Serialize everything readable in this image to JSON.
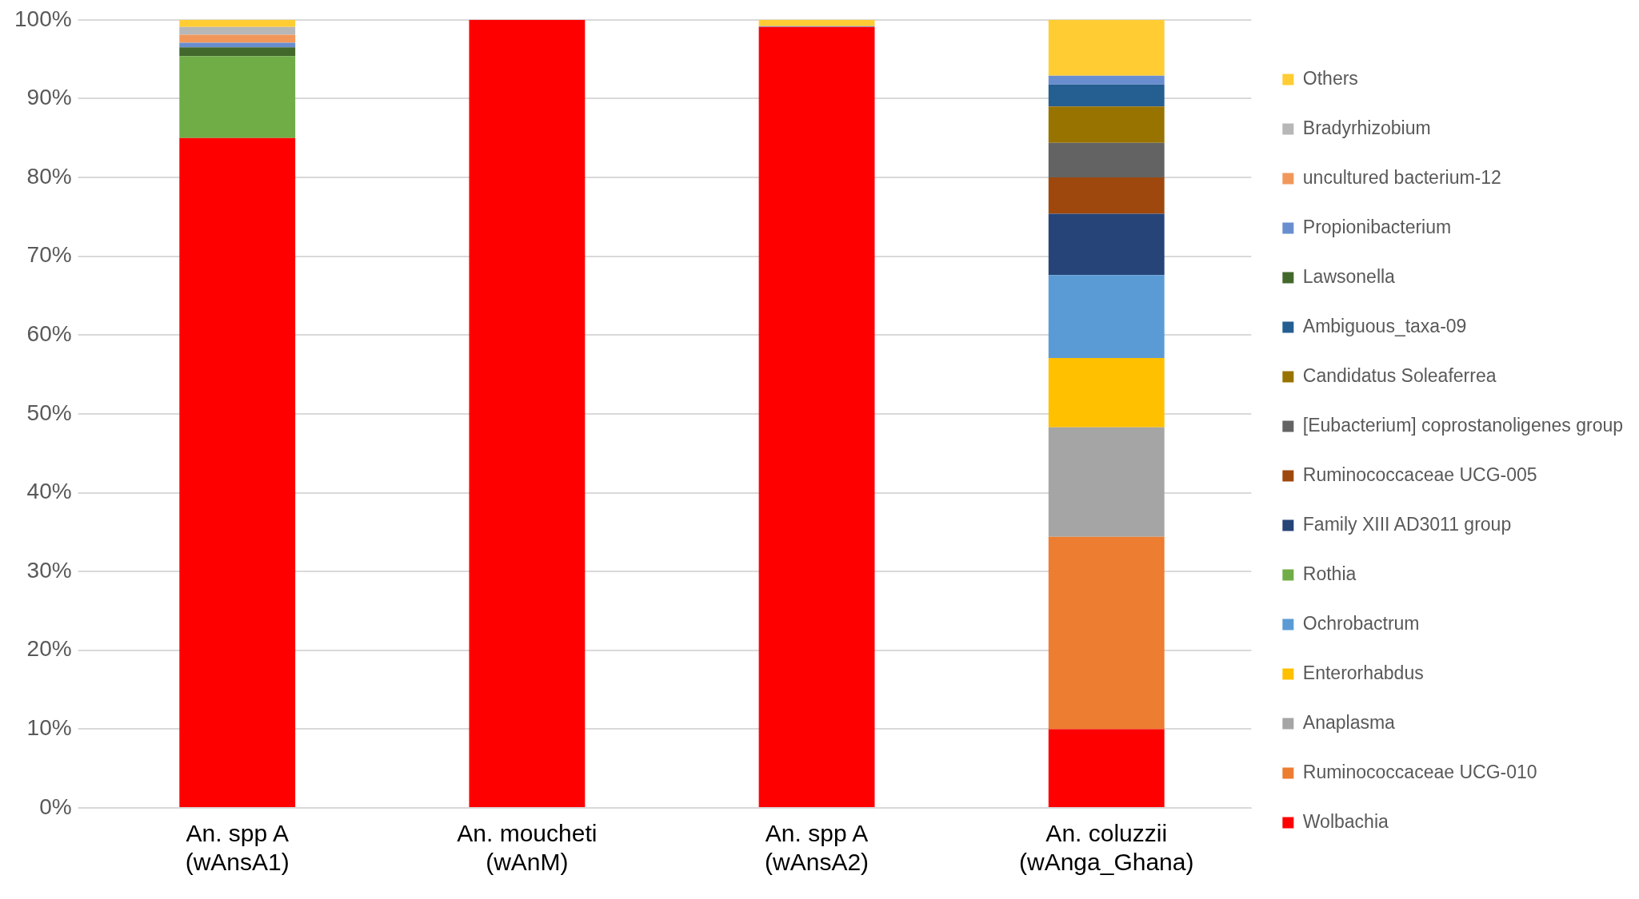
{
  "chart_data": {
    "type": "bar",
    "stacked": true,
    "categories": [
      "An. spp A (wAnsA1)",
      "An. moucheti (wAnM)",
      "An. spp A (wAnsA2)",
      "An. coluzzii (wAnga_Ghana)"
    ],
    "series": [
      {
        "name": "Wolbachia",
        "color": "#ff0000",
        "values": [
          85.0,
          100,
          99.1,
          10.0
        ]
      },
      {
        "name": "Ruminococcaceae UCG-010",
        "color": "#ed7d31",
        "values": [
          0,
          0,
          0,
          24.4
        ]
      },
      {
        "name": "Anaplasma",
        "color": "#a5a5a5",
        "values": [
          0,
          0,
          0,
          13.9
        ]
      },
      {
        "name": "Enterorhabdus",
        "color": "#ffc000",
        "values": [
          0,
          0,
          0,
          8.8
        ]
      },
      {
        "name": "Ochrobactrum",
        "color": "#5b9bd5",
        "values": [
          0,
          0,
          0,
          10.5
        ]
      },
      {
        "name": "Rothia",
        "color": "#70ad47",
        "values": [
          10.4,
          0,
          0,
          0
        ]
      },
      {
        "name": "Family XIII AD3011 group",
        "color": "#264478",
        "values": [
          0,
          0,
          0,
          7.8
        ]
      },
      {
        "name": "Ruminococcaceae UCG-005",
        "color": "#9e480e",
        "values": [
          0,
          0,
          0,
          4.6
        ]
      },
      {
        "name": "[Eubacterium] coprostanoligenes group",
        "color": "#636363",
        "values": [
          0,
          0,
          0,
          4.4
        ]
      },
      {
        "name": "Candidatus Soleaferrea",
        "color": "#997300",
        "values": [
          0,
          0,
          0,
          4.6
        ]
      },
      {
        "name": "Ambiguous_taxa-09",
        "color": "#255e91",
        "values": [
          0,
          0,
          0,
          2.8
        ]
      },
      {
        "name": "Lawsonella",
        "color": "#43682b",
        "values": [
          1.1,
          0,
          0,
          0
        ]
      },
      {
        "name": "Propionibacterium",
        "color": "#698ed0",
        "values": [
          0.6,
          0,
          0.1,
          1.1
        ]
      },
      {
        "name": "uncultured bacterium-12",
        "color": "#f1975a",
        "values": [
          1.0,
          0,
          0,
          0
        ]
      },
      {
        "name": "Bradyrhizobium",
        "color": "#b7b7b7",
        "values": [
          1.0,
          0,
          0,
          0
        ]
      },
      {
        "name": "Others",
        "color": "#ffcd33",
        "values": [
          0.9,
          0,
          0.8,
          7.1
        ]
      }
    ],
    "ylim": [
      0,
      100
    ],
    "yticks": [
      {
        "value": 0,
        "label": "0%"
      },
      {
        "value": 10,
        "label": "10%"
      },
      {
        "value": 20,
        "label": "20%"
      },
      {
        "value": 30,
        "label": "30%"
      },
      {
        "value": 40,
        "label": "40%"
      },
      {
        "value": 50,
        "label": "50%"
      },
      {
        "value": 60,
        "label": "60%"
      },
      {
        "value": 70,
        "label": "70%"
      },
      {
        "value": 80,
        "label": "80%"
      },
      {
        "value": 90,
        "label": "90%"
      },
      {
        "value": 100,
        "label": "100%"
      }
    ],
    "grid": "y",
    "legend": "right"
  }
}
